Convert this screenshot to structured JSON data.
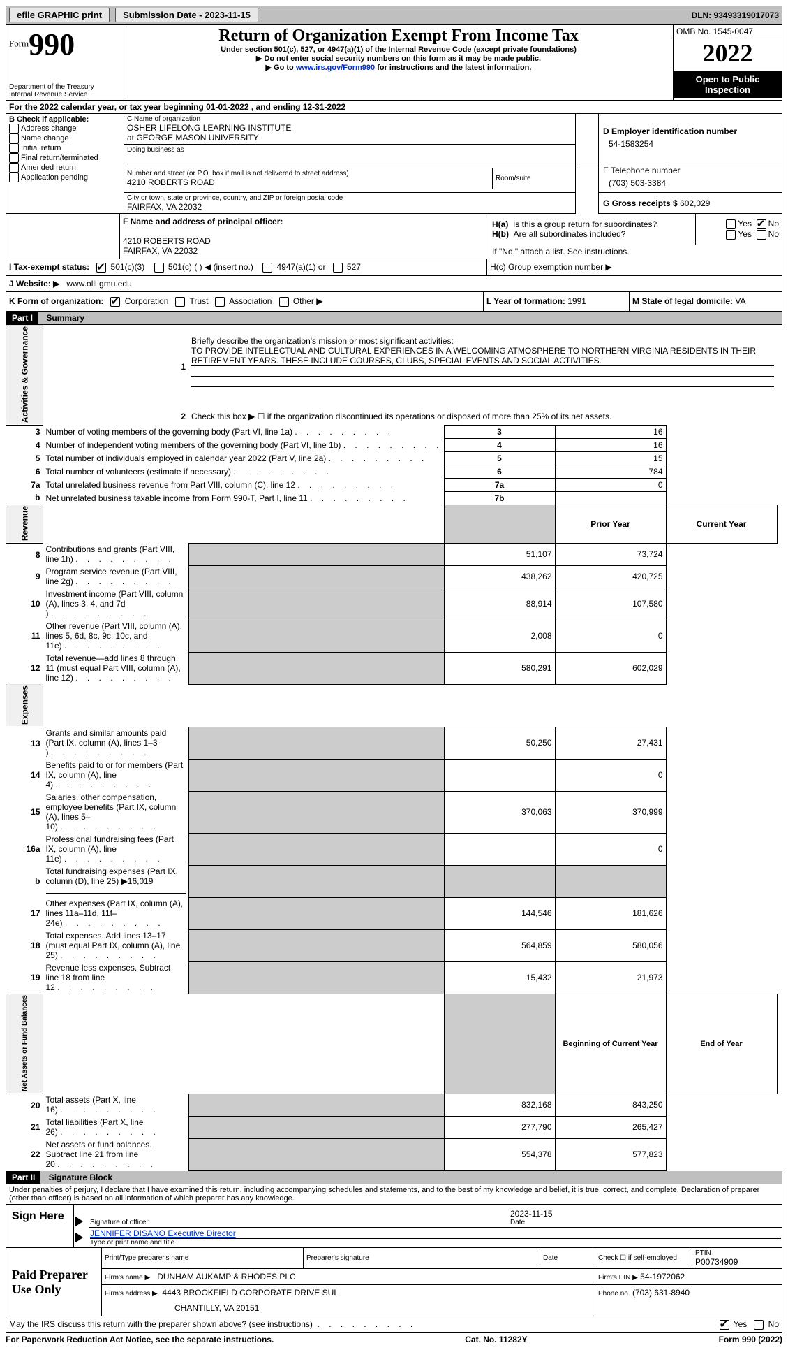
{
  "topbar": {
    "efile": "efile GRAPHIC print",
    "sub_date_label": "Submission Date - 2023-11-15",
    "dln": "DLN: 93493319017073"
  },
  "header": {
    "form_word": "Form",
    "form_num": "990",
    "dept": "Department of the Treasury",
    "irs": "Internal Revenue Service",
    "title": "Return of Organization Exempt From Income Tax",
    "sub1": "Under section 501(c), 527, or 4947(a)(1) of the Internal Revenue Code (except private foundations)",
    "sub2": "Do not enter social security numbers on this form as it may be made public.",
    "sub3_pre": "Go to ",
    "sub3_link": "www.irs.gov/Form990",
    "sub3_post": " for instructions and the latest information.",
    "omb": "OMB No. 1545-0047",
    "year": "2022",
    "open": "Open to Public Inspection"
  },
  "line_a": "For the 2022 calendar year, or tax year beginning 01-01-2022     , and ending 12-31-2022",
  "boxB": {
    "title": "B Check if applicable:",
    "opts": [
      "Address change",
      "Name change",
      "Initial return",
      "Final return/terminated",
      "Amended return",
      "Application pending"
    ]
  },
  "boxC": {
    "name_label": "C Name of organization",
    "name1": "OSHER LIFELONG LEARNING INSTITUTE",
    "name2": "at GEORGE MASON UNIVERSITY",
    "dba": "Doing business as",
    "addr_label": "Number and street (or P.O. box if mail is not delivered to street address)",
    "room": "Room/suite",
    "addr": "4210 ROBERTS ROAD",
    "city_label": "City or town, state or province, country, and ZIP or foreign postal code",
    "city": "FAIRFAX, VA  22032"
  },
  "boxD": {
    "label": "D Employer identification number",
    "val": "54-1583254"
  },
  "boxE": {
    "label": "E Telephone number",
    "val": "(703) 503-3384"
  },
  "boxG": {
    "label": "G Gross receipts $",
    "val": "602,029"
  },
  "boxF": {
    "label": "F Name and address of principal officer:",
    "addr1": "4210 ROBERTS ROAD",
    "addr2": "FAIRFAX, VA  22032"
  },
  "boxH": {
    "a": "H(a)  Is this a group return for subordinates?",
    "b": "H(b)  Are all subordinates included?",
    "note": "If \"No,\" attach a list. See instructions.",
    "c": "H(c)  Group exemption number ▶",
    "yes": "Yes",
    "no": "No"
  },
  "boxI": {
    "label": "I   Tax-exempt status:",
    "o1": "501(c)(3)",
    "o2": "501(c) (  ) ◀ (insert no.)",
    "o3": "4947(a)(1) or",
    "o4": "527"
  },
  "boxJ": {
    "label": "J   Website: ▶",
    "val": "www.olli.gmu.edu"
  },
  "boxK": {
    "label": "K Form of organization:",
    "o1": "Corporation",
    "o2": "Trust",
    "o3": "Association",
    "o4": "Other ▶"
  },
  "boxL": {
    "label": "L Year of formation: ",
    "val": "1991"
  },
  "boxM": {
    "label": "M State of legal domicile: ",
    "val": "VA"
  },
  "part1": {
    "num": "Part I",
    "title": "Summary"
  },
  "summary": {
    "l1": "Briefly describe the organization's mission or most significant activities:",
    "l1text": "TO PROVIDE INTELLECTUAL AND CULTURAL EXPERIENCES IN A WELCOMING ATMOSPHERE TO NORTHERN VIRGINIA RESIDENTS IN THEIR RETIREMENT YEARS. THESE INCLUDE COURSES, CLUBS, SPECIAL EVENTS AND SOCIAL ACTIVITIES.",
    "l2": "Check this box ▶ ☐  if the organization discontinued its operations or disposed of more than 25% of its net assets.",
    "rows_top": [
      {
        "n": "3",
        "label": "Number of voting members of the governing body (Part VI, line 1a)",
        "box": "3",
        "val": "16"
      },
      {
        "n": "4",
        "label": "Number of independent voting members of the governing body (Part VI, line 1b)",
        "box": "4",
        "val": "16"
      },
      {
        "n": "5",
        "label": "Total number of individuals employed in calendar year 2022 (Part V, line 2a)",
        "box": "5",
        "val": "15"
      },
      {
        "n": "6",
        "label": "Total number of volunteers (estimate if necessary)",
        "box": "6",
        "val": "784"
      },
      {
        "n": "7a",
        "label": "Total unrelated business revenue from Part VIII, column (C), line 12",
        "box": "7a",
        "val": "0"
      },
      {
        "n": "b",
        "label": "Net unrelated business taxable income from Form 990-T, Part I, line 11",
        "box": "7b",
        "val": ""
      }
    ],
    "col_prior": "Prior Year",
    "col_current": "Current Year",
    "revenue": [
      {
        "n": "8",
        "label": "Contributions and grants (Part VIII, line 1h)",
        "p": "51,107",
        "c": "73,724"
      },
      {
        "n": "9",
        "label": "Program service revenue (Part VIII, line 2g)",
        "p": "438,262",
        "c": "420,725"
      },
      {
        "n": "10",
        "label": "Investment income (Part VIII, column (A), lines 3, 4, and 7d )",
        "p": "88,914",
        "c": "107,580"
      },
      {
        "n": "11",
        "label": "Other revenue (Part VIII, column (A), lines 5, 6d, 8c, 9c, 10c, and 11e)",
        "p": "2,008",
        "c": "0"
      },
      {
        "n": "12",
        "label": "Total revenue—add lines 8 through 11 (must equal Part VIII, column (A), line 12)",
        "p": "580,291",
        "c": "602,029"
      }
    ],
    "expenses": [
      {
        "n": "13",
        "label": "Grants and similar amounts paid (Part IX, column (A), lines 1–3 )",
        "p": "50,250",
        "c": "27,431"
      },
      {
        "n": "14",
        "label": "Benefits paid to or for members (Part IX, column (A), line 4)",
        "p": "",
        "c": "0"
      },
      {
        "n": "15",
        "label": "Salaries, other compensation, employee benefits (Part IX, column (A), lines 5–10)",
        "p": "370,063",
        "c": "370,999"
      },
      {
        "n": "16a",
        "label": "Professional fundraising fees (Part IX, column (A), line 11e)",
        "p": "",
        "c": "0"
      },
      {
        "n": "b",
        "label": "Total fundraising expenses (Part IX, column (D), line 25) ▶16,019",
        "p": "GREY",
        "c": "GREY"
      },
      {
        "n": "17",
        "label": "Other expenses (Part IX, column (A), lines 11a–11d, 11f–24e)",
        "p": "144,546",
        "c": "181,626"
      },
      {
        "n": "18",
        "label": "Total expenses. Add lines 13–17 (must equal Part IX, column (A), line 25)",
        "p": "564,859",
        "c": "580,056"
      },
      {
        "n": "19",
        "label": "Revenue less expenses. Subtract line 18 from line 12",
        "p": "15,432",
        "c": "21,973"
      }
    ],
    "col_begin": "Beginning of Current Year",
    "col_end": "End of Year",
    "net": [
      {
        "n": "20",
        "label": "Total assets (Part X, line 16)",
        "p": "832,168",
        "c": "843,250"
      },
      {
        "n": "21",
        "label": "Total liabilities (Part X, line 26)",
        "p": "277,790",
        "c": "265,427"
      },
      {
        "n": "22",
        "label": "Net assets or fund balances. Subtract line 21 from line 20",
        "p": "554,378",
        "c": "577,823"
      }
    ],
    "side_act": "Activities & Governance",
    "side_rev": "Revenue",
    "side_exp": "Expenses",
    "side_net": "Net Assets or Fund Balances"
  },
  "part2": {
    "num": "Part II",
    "title": "Signature Block"
  },
  "sig": {
    "decl": "Under penalties of perjury, I declare that I have examined this return, including accompanying schedules and statements, and to the best of my knowledge and belief, it is true, correct, and complete. Declaration of preparer (other than officer) is based on all information of which preparer has any knowledge.",
    "sign_here": "Sign Here",
    "sig_officer": "Signature of officer",
    "sig_date": "2023-11-15",
    "date": "Date",
    "name": "JENNIFER DISANO  Executive Director",
    "name_label": "Type or print name and title",
    "paid": "Paid Preparer Use Only",
    "prep_name": "Print/Type preparer's name",
    "prep_sig": "Preparer's signature",
    "check_self": "Check ☐ if self-employed",
    "ptin_label": "PTIN",
    "ptin": "P00734909",
    "firm_label": "Firm's name    ▶",
    "firm": "DUNHAM AUKAMP & RHODES PLC",
    "ein_label": "Firm's EIN ▶",
    "ein": "54-1972062",
    "addr_label": "Firm's address ▶",
    "addr1": "4443 BROOKFIELD CORPORATE DRIVE SUI",
    "addr2": "CHANTILLY, VA  20151",
    "phone_label": "Phone no.",
    "phone": "(703) 631-8940",
    "discuss": "May the IRS discuss this return with the preparer shown above? (see instructions)"
  },
  "footer": {
    "left": "For Paperwork Reduction Act Notice, see the separate instructions.",
    "mid": "Cat. No. 11282Y",
    "right": "Form 990 (2022)"
  }
}
